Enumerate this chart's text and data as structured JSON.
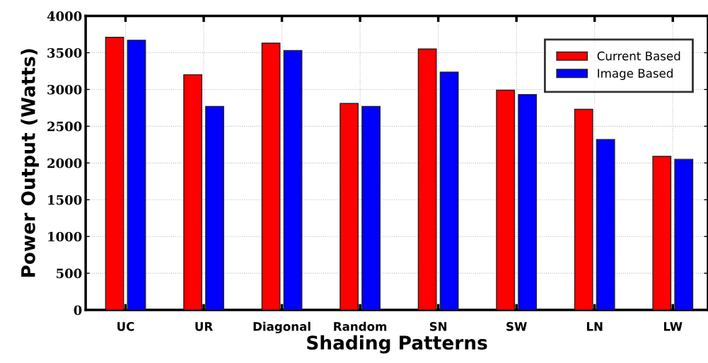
{
  "chart_data": {
    "type": "bar",
    "xlabel": "Shading Patterns",
    "ylabel": "Power Output (Watts)",
    "categories": [
      "UC",
      "UR",
      "Diagonal",
      "Random",
      "SN",
      "SW",
      "LN",
      "LW"
    ],
    "series": [
      {
        "name": "Current Based",
        "color": "#ff0000",
        "values": [
          3710,
          3200,
          3630,
          2810,
          3550,
          2990,
          2730,
          2090
        ]
      },
      {
        "name": "Image Based",
        "color": "#0000ff",
        "values": [
          3670,
          2770,
          3530,
          2770,
          3235,
          2930,
          2320,
          2050
        ]
      }
    ],
    "ylim": [
      0,
      4000
    ],
    "yticks": [
      0,
      500,
      1000,
      1500,
      2000,
      2500,
      3000,
      3500,
      4000
    ],
    "grid": true,
    "legend": "top right"
  }
}
